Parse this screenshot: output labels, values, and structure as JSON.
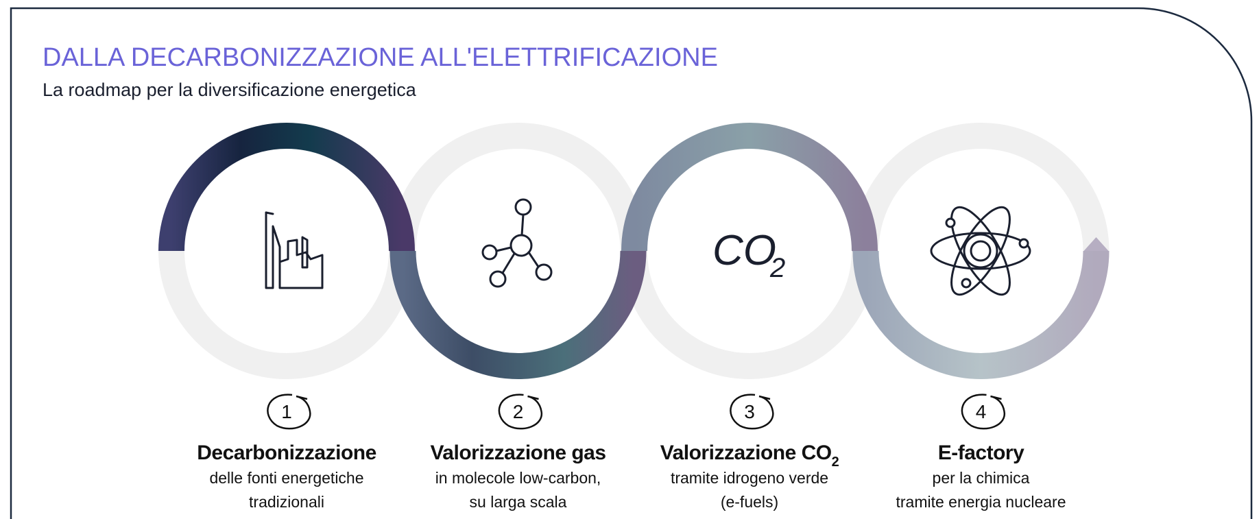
{
  "header": {
    "title": "DALLA DECARBONIZZAZIONE ALL'ELETTRIFICAZIONE",
    "subtitle": "La roadmap per la diversificazione energetica"
  },
  "steps": [
    {
      "number": "1",
      "title": "Decarbonizzazione",
      "lines": [
        "delle fonti energetiche",
        "tradizionali"
      ]
    },
    {
      "number": "2",
      "title": "Valorizzazione gas",
      "lines": [
        "in molecole low-carbon,",
        "su larga scala"
      ]
    },
    {
      "number": "3",
      "title": "Valorizzazione CO",
      "title_sub": "2",
      "icon_text": "CO",
      "icon_sub": "2",
      "lines": [
        "tramite idrogeno verde",
        "(e-fuels)"
      ]
    },
    {
      "number": "4",
      "title": "E-factory",
      "lines": [
        "per la chimica",
        "tramite energia nucleare"
      ]
    }
  ]
}
